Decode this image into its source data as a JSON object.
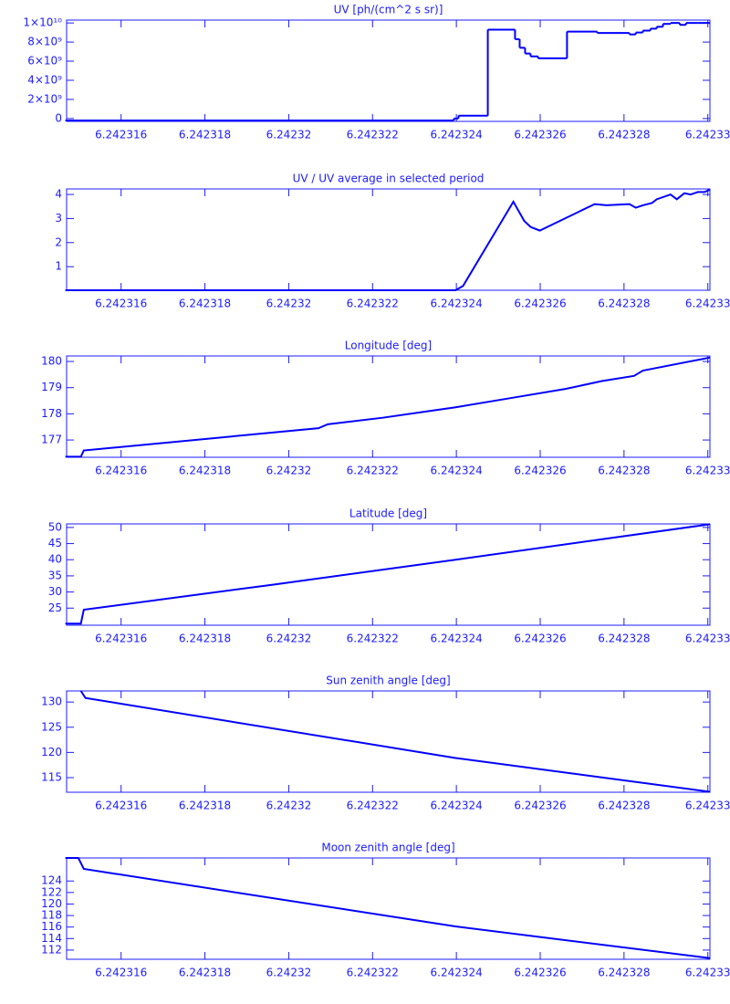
{
  "chart_data": [
    {
      "type": "line",
      "title": "UV [ph/(cm^2 s sr)]",
      "drawstyle": "steps-post",
      "color": "#0000ff",
      "x": [
        6.24231467,
        6.24232394,
        6.24232405,
        6.24232475,
        6.2423254,
        6.24232551,
        6.24232564,
        6.24232577,
        6.24232595,
        6.24232664,
        6.24232736,
        6.24232813,
        6.24232828,
        6.24232845,
        6.24232863,
        6.24232878,
        6.24232893,
        6.24232911,
        6.24232933,
        6.24232948,
        6.24232976
      ],
      "values": [
        -200000000,
        0,
        300000000,
        9300000000,
        8300000000,
        7400000000,
        6800000000,
        6500000000,
        6300000000,
        9100000000,
        8950000000,
        8800000000,
        9000000000,
        9200000000,
        9400000000,
        9600000000,
        9900000000,
        10000000000,
        9800000000,
        10000000000,
        10000000000
      ],
      "xlim": [
        6.2423147,
        6.24233005
      ],
      "xticks": [
        6.242316,
        6.242318,
        6.24232,
        6.242322,
        6.242324,
        6.242326,
        6.242328,
        6.24233
      ],
      "ylim": [
        -300000000,
        10300000000
      ],
      "yticks": [
        0,
        {
          "value": 2000000000,
          "label": "2×10⁹"
        },
        {
          "value": 4000000000,
          "label": "4×10⁹"
        },
        {
          "value": 6000000000,
          "label": "6×10⁹"
        },
        {
          "value": 8000000000,
          "label": "8×10⁹"
        },
        {
          "value": 10000000000,
          "label": "1×10¹⁰"
        }
      ]
    },
    {
      "type": "line",
      "title": "UV / UV average in selected period",
      "color": "#0000ff",
      "x": [
        6.24231467,
        6.24232398,
        6.24232416,
        6.24232536,
        6.24232562,
        6.24232577,
        6.24232599,
        6.2423273,
        6.24232758,
        6.24232813,
        6.24232828,
        6.24232845,
        6.24232867,
        6.24232878,
        6.24232911,
        6.24232926,
        6.24232944,
        6.24232959,
        6.24232976,
        6.24232992,
        6.24233005
      ],
      "values": [
        0.02,
        0.02,
        0.2,
        3.7,
        2.9,
        2.65,
        2.5,
        3.6,
        3.55,
        3.6,
        3.45,
        3.55,
        3.65,
        3.8,
        4.0,
        3.8,
        4.05,
        4.0,
        4.1,
        4.1,
        4.2
      ],
      "xlim": [
        6.2423147,
        6.24233005
      ],
      "xticks": [
        6.242316,
        6.242318,
        6.24232,
        6.242322,
        6.242324,
        6.242326,
        6.242328,
        6.24233
      ],
      "ylim": [
        0.02,
        4.23
      ],
      "yticks": [
        1,
        2,
        3,
        4
      ]
    },
    {
      "type": "line",
      "title": "Longitude [deg]",
      "color": "#0000ff",
      "x": [
        6.24231467,
        6.24231504,
        6.24231511,
        6.24232071,
        6.24232093,
        6.24232224,
        6.24232333,
        6.24232398,
        6.24232529,
        6.2423266,
        6.24232747,
        6.24232824,
        6.24232845,
        6.24233005
      ],
      "values": [
        176.36,
        176.36,
        176.6,
        177.45,
        177.6,
        177.85,
        178.1,
        178.25,
        178.6,
        178.95,
        179.25,
        179.45,
        179.65,
        180.15
      ],
      "xlim": [
        6.2423147,
        6.24233005
      ],
      "xticks": [
        6.242316,
        6.242318,
        6.24232,
        6.242322,
        6.242324,
        6.242326,
        6.242328,
        6.24233
      ],
      "ylim": [
        176.34,
        180.21
      ],
      "yticks": [
        177,
        178,
        179,
        180
      ]
    },
    {
      "type": "line",
      "title": "Latitude [deg]",
      "color": "#0000ff",
      "x": [
        6.24231467,
        6.24231504,
        6.24231511,
        6.24231964,
        6.24232398,
        6.24233005
      ],
      "values": [
        20.2,
        20.2,
        24.5,
        32.3,
        40,
        51
      ],
      "xlim": [
        6.2423147,
        6.24233005
      ],
      "xticks": [
        6.242316,
        6.242318,
        6.24232,
        6.242322,
        6.242324,
        6.242326,
        6.242328,
        6.24233
      ],
      "ylim": [
        19.7,
        51.1
      ],
      "yticks": [
        25,
        30,
        35,
        40,
        45,
        50
      ]
    },
    {
      "type": "line",
      "title": "Sun zenith angle [deg]",
      "color": "#0000ff",
      "x": [
        6.24231504,
        6.24231515,
        6.24232398,
        6.24233005
      ],
      "values": [
        132.2,
        130.8,
        118.9,
        112.2
      ],
      "xlim": [
        6.2423147,
        6.24233005
      ],
      "xticks": [
        6.242316,
        6.242318,
        6.24232,
        6.242322,
        6.242324,
        6.242326,
        6.242328,
        6.24233
      ],
      "ylim": [
        112.1,
        132.2
      ],
      "yticks": [
        115,
        120,
        125,
        130
      ]
    },
    {
      "type": "line",
      "title": "Moon zenith angle [deg]",
      "color": "#0000ff",
      "x": [
        6.24231467,
        6.24231498,
        6.24231511,
        6.24232398,
        6.24233005
      ],
      "values": [
        128,
        128,
        126.1,
        116.1,
        110.6
      ],
      "xlim": [
        6.2423147,
        6.24233005
      ],
      "xticks": [
        6.242316,
        6.242318,
        6.24232,
        6.242322,
        6.242324,
        6.242326,
        6.242328,
        6.24233
      ],
      "ylim": [
        110.4,
        128
      ],
      "yticks": [
        112,
        114,
        116,
        118,
        120,
        122,
        124
      ]
    }
  ]
}
